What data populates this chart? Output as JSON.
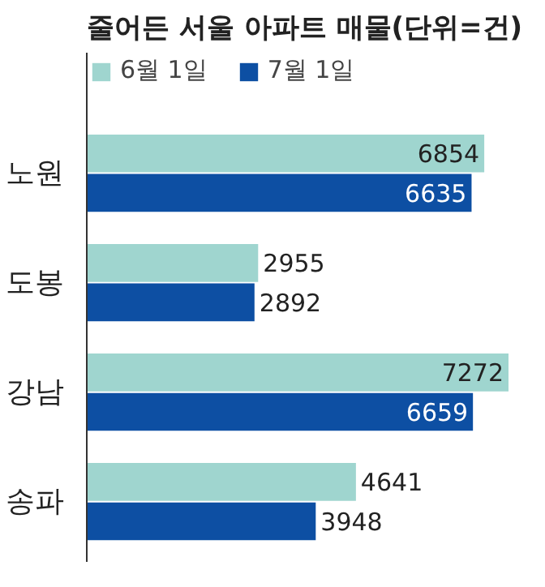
{
  "chart_data": {
    "type": "bar",
    "orientation": "horizontal",
    "title": "줄어든 서울 아파트 매물(단위=건)",
    "categories": [
      "노원",
      "도봉",
      "강남",
      "송파"
    ],
    "series": [
      {
        "name": "6월 1일",
        "color": "#9fd5cf",
        "values": [
          6854,
          2955,
          7272,
          4641
        ]
      },
      {
        "name": "7월 1일",
        "color": "#0d4fa3",
        "values": [
          6635,
          2892,
          6659,
          3948
        ]
      }
    ],
    "data_labels": true,
    "legend": "top",
    "tick_labels": "y",
    "grid": false
  }
}
